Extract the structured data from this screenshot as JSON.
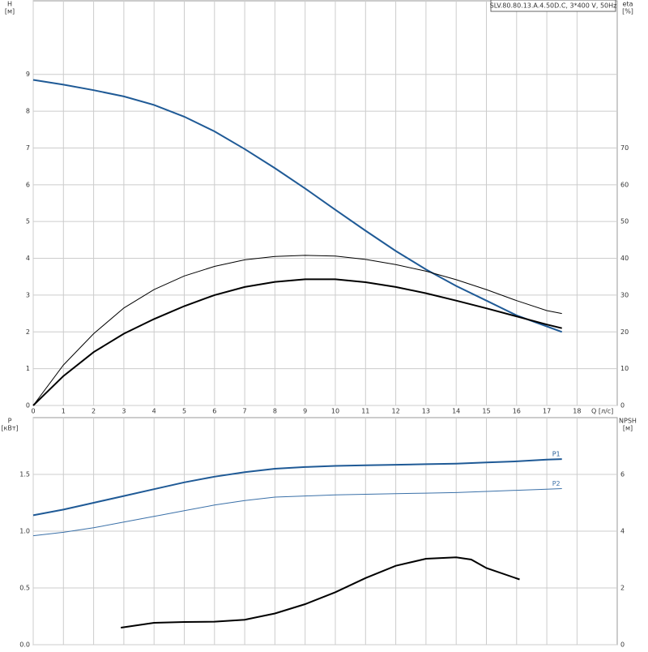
{
  "chart_data": [
    {
      "type": "line",
      "title": "SLV.80.80.13.A.4.50D.C, 3*400 V, 50Hz",
      "x_label": "Q [л/с]",
      "y_label": "H",
      "y_unit": "[м]",
      "y2_label": "eta",
      "y2_unit": "[%]",
      "xlim": [
        0,
        19.33
      ],
      "xticks": [
        0,
        1,
        2,
        3,
        4,
        5,
        6,
        7,
        8,
        9,
        10,
        11,
        12,
        13,
        14,
        15,
        16,
        17,
        18
      ],
      "xtick_labels": true,
      "ylim": [
        0,
        11
      ],
      "yticks": [
        0,
        1,
        2,
        3,
        4,
        5,
        6,
        7,
        8,
        9
      ],
      "y2lim": [
        0,
        110
      ],
      "y2ticks": [
        0,
        10,
        20,
        30,
        40,
        50,
        60,
        70
      ],
      "grid": true,
      "series": [
        {
          "color": "#1f5a96",
          "width": 2,
          "x": [
            0,
            1,
            2,
            3,
            4,
            5,
            6,
            7,
            8,
            9,
            10,
            11,
            12,
            13,
            14,
            15,
            16,
            17,
            17.5
          ],
          "values": [
            8.85,
            8.72,
            8.57,
            8.4,
            8.17,
            7.85,
            7.45,
            6.97,
            6.45,
            5.9,
            5.32,
            4.75,
            4.2,
            3.7,
            3.25,
            2.85,
            2.45,
            2.15,
            2.0
          ]
        },
        {
          "color": "#000000",
          "width": 1,
          "axis": "y2",
          "x": [
            0,
            1,
            2,
            3,
            4,
            5,
            6,
            7,
            8,
            9,
            10,
            11,
            12,
            13,
            14,
            15,
            16,
            17,
            17.5
          ],
          "values": [
            0,
            11,
            19.5,
            26.5,
            31.5,
            35.2,
            37.8,
            39.6,
            40.5,
            40.8,
            40.6,
            39.7,
            38.3,
            36.5,
            34.2,
            31.5,
            28.5,
            25.8,
            25
          ]
        },
        {
          "color": "#000000",
          "width": 2,
          "axis": "y2",
          "x": [
            0,
            1,
            2,
            3,
            4,
            5,
            6,
            7,
            8,
            9,
            10,
            11,
            12,
            13,
            14,
            15,
            16,
            17,
            17.5
          ],
          "values": [
            0,
            8,
            14.5,
            19.5,
            23.5,
            27,
            30,
            32.2,
            33.6,
            34.3,
            34.3,
            33.5,
            32.2,
            30.5,
            28.5,
            26.4,
            24.2,
            22,
            21
          ]
        }
      ]
    },
    {
      "type": "line",
      "y_label": "P",
      "y_unit": "[кВт]",
      "y2_label": "NPSH",
      "y2_unit": "[м]",
      "xlim": [
        0,
        19.33
      ],
      "xticks": [
        0,
        1,
        2,
        3,
        4,
        5,
        6,
        7,
        8,
        9,
        10,
        11,
        12,
        13,
        14,
        15,
        16,
        17,
        18
      ],
      "xtick_labels": false,
      "ylim": [
        0,
        2
      ],
      "yticks": [
        {
          "value": 0,
          "label": "0.0"
        },
        0.5,
        {
          "value": 1,
          "label": "1.0"
        },
        1.5
      ],
      "y2lim": [
        0,
        8
      ],
      "y2ticks": [
        0,
        2,
        4,
        6
      ],
      "grid": true,
      "series": [
        {
          "name": "P1",
          "color": "#1f5a96",
          "width": 2,
          "x": [
            0,
            1,
            2,
            3,
            4,
            5,
            6,
            7,
            8,
            9,
            10,
            11,
            12,
            13,
            14,
            15,
            16,
            17,
            17.5
          ],
          "values": [
            1.14,
            1.19,
            1.25,
            1.31,
            1.37,
            1.43,
            1.48,
            1.52,
            1.55,
            1.565,
            1.575,
            1.58,
            1.585,
            1.59,
            1.595,
            1.605,
            1.615,
            1.63,
            1.635
          ]
        },
        {
          "name": "P2",
          "color": "#3a70a8",
          "width": 1,
          "x": [
            0,
            1,
            2,
            3,
            4,
            5,
            6,
            7,
            8,
            9,
            10,
            11,
            12,
            13,
            14,
            15,
            16,
            17,
            17.5
          ],
          "values": [
            0.96,
            0.99,
            1.03,
            1.08,
            1.13,
            1.18,
            1.23,
            1.27,
            1.3,
            1.31,
            1.32,
            1.325,
            1.33,
            1.335,
            1.34,
            1.35,
            1.36,
            1.37,
            1.375
          ]
        },
        {
          "color": "#000000",
          "width": 2,
          "axis": "y2",
          "x": [
            2.9,
            4,
            5,
            6,
            7,
            8,
            9,
            10,
            11,
            12,
            13,
            14,
            14.5,
            15,
            16.1
          ],
          "values": [
            0.6,
            0.77,
            0.8,
            0.81,
            0.88,
            1.1,
            1.43,
            1.85,
            2.35,
            2.78,
            3.03,
            3.08,
            3.0,
            2.7,
            2.3
          ]
        }
      ]
    }
  ]
}
